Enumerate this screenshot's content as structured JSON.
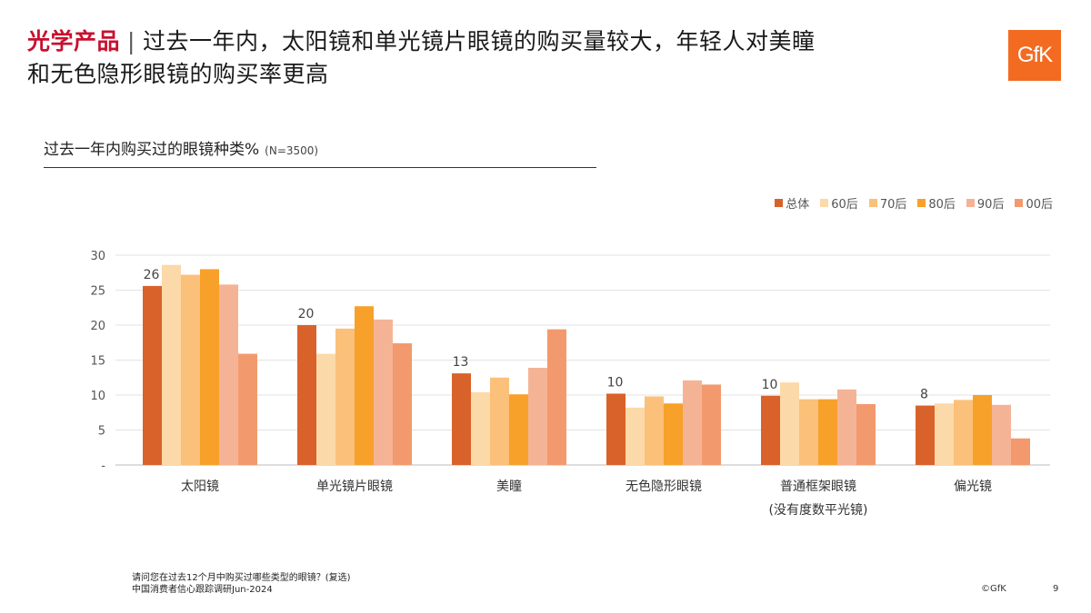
{
  "header": {
    "title_accent": "光学产品",
    "title_sep": "|",
    "title_line1": "过去一年内，太阳镜和单光镜片眼镜的购买量较大，年轻人对美瞳",
    "title_line2": "和无色隐形眼镜的购买率更高",
    "logo_text": "GfK"
  },
  "footer": {
    "question": "请问您在过去12个月中购买过哪些类型的眼镜？(复选)",
    "source": "中国消费者信心跟踪调研Jun-2024",
    "copyright": "©GfK",
    "page": "9"
  },
  "colors": {
    "总体": "#d9622b",
    "60后": "#fcd9a8",
    "70后": "#fbc079",
    "80后": "#f7a12a",
    "90后": "#f5b396",
    "00后": "#f29a6e"
  },
  "chart_data": {
    "type": "bar",
    "title": "过去一年内购买过的眼镜种类%",
    "n_label": "(N=3500)",
    "categories": [
      "太阳镜",
      "单光镜片眼镜",
      "美瞳",
      "无色隐形眼镜",
      "普通框架眼镜",
      "偏光镜"
    ],
    "category_sublabels": [
      "",
      "",
      "",
      "",
      "(没有度数平光镜)",
      ""
    ],
    "series": [
      {
        "name": "总体",
        "values": [
          25.6,
          20.0,
          13.1,
          10.2,
          9.9,
          8.5
        ]
      },
      {
        "name": "60后",
        "values": [
          28.6,
          15.9,
          10.4,
          8.2,
          11.8,
          8.8
        ]
      },
      {
        "name": "70后",
        "values": [
          27.2,
          19.5,
          12.5,
          9.8,
          9.4,
          9.3
        ]
      },
      {
        "name": "80后",
        "values": [
          28.0,
          22.7,
          10.1,
          8.8,
          9.4,
          10.0
        ]
      },
      {
        "name": "90后",
        "values": [
          25.8,
          20.8,
          13.9,
          12.1,
          10.8,
          8.6
        ]
      },
      {
        "name": "00后",
        "values": [
          15.9,
          17.4,
          19.4,
          11.5,
          8.7,
          3.8
        ]
      }
    ],
    "data_labels": [
      "26",
      "20",
      "13",
      "10",
      "10",
      "8"
    ],
    "y_ticks": [
      "-",
      "5",
      "10",
      "15",
      "20",
      "25",
      "30"
    ],
    "ylim": [
      0,
      30
    ],
    "grid": true,
    "legend": "top-right"
  }
}
